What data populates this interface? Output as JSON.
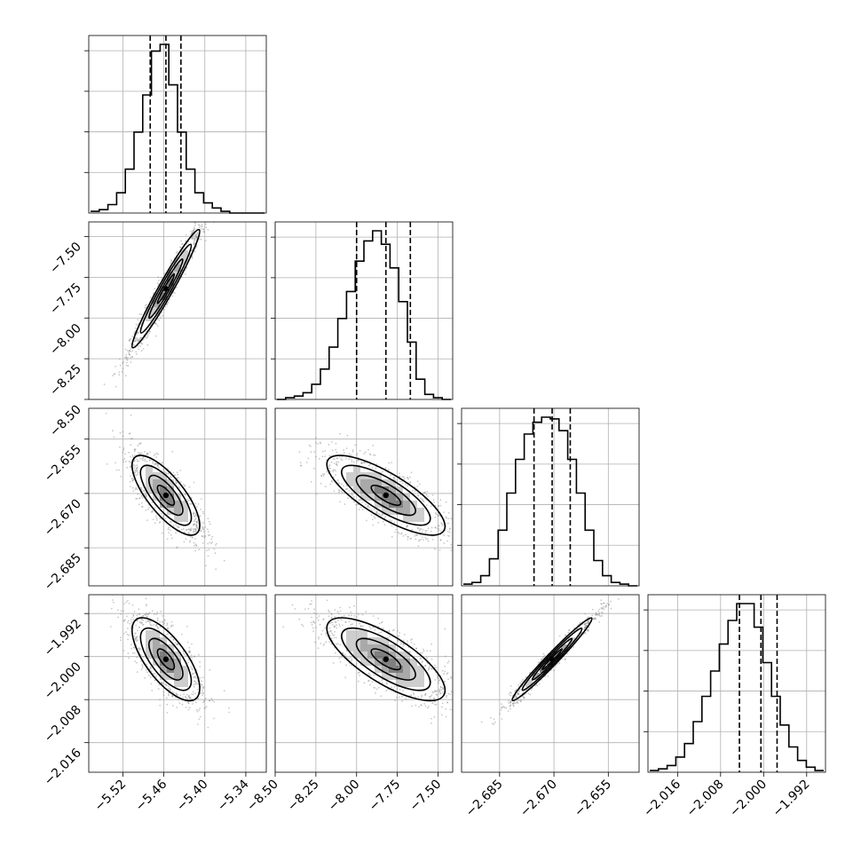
{
  "chart_data": {
    "type": "corner",
    "parameters": [
      {
        "id": "p0",
        "lim": [
          -5.57,
          -5.31
        ],
        "ticks": [
          -5.52,
          -5.46,
          -5.4,
          -5.34
        ],
        "tick_labels": [
          "−5.52",
          "−5.46",
          "−5.40",
          "−5.34"
        ],
        "quantiles": [
          -5.48,
          -5.457,
          -5.435
        ],
        "hist_counts": [
          1,
          2,
          5,
          12,
          26,
          48,
          70,
          96,
          100,
          76,
          48,
          26,
          12,
          6,
          3,
          1,
          0,
          0,
          0,
          0
        ]
      },
      {
        "id": "p1",
        "lim": [
          -8.5,
          -7.41
        ],
        "ticks": [
          -8.5,
          -8.25,
          -8.0,
          -7.75,
          -7.5
        ],
        "tick_labels": [
          "−8.50",
          "−8.25",
          "−8.00",
          "−7.75",
          "−7.50"
        ],
        "quantiles": [
          -8.0,
          -7.82,
          -7.67
        ],
        "hist_counts": [
          0,
          1,
          2,
          4,
          9,
          18,
          31,
          48,
          64,
          82,
          94,
          100,
          92,
          78,
          58,
          34,
          12,
          3,
          1,
          0
        ]
      },
      {
        "id": "p2",
        "lim": [
          -2.6955,
          -2.6465
        ],
        "ticks": [
          -2.685,
          -2.67,
          -2.655
        ],
        "tick_labels": [
          "−2.685",
          "−2.670",
          "−2.655"
        ],
        "quantiles": [
          -2.6755,
          -2.6705,
          -2.6655
        ],
        "hist_counts": [
          1,
          2,
          6,
          16,
          33,
          55,
          75,
          90,
          97,
          100,
          99,
          92,
          75,
          55,
          33,
          15,
          6,
          2,
          1,
          0
        ]
      },
      {
        "id": "p3",
        "lim": [
          -2.0215,
          -1.9885
        ],
        "ticks": [
          -2.016,
          -2.008,
          -2.0,
          -1.992
        ],
        "tick_labels": [
          "−2.016",
          "−2.008",
          "−2.000",
          "−1.992"
        ],
        "quantiles": [
          -2.0045,
          -2.0005,
          -1.9975
        ],
        "hist_counts": [
          1,
          2,
          4,
          9,
          17,
          30,
          45,
          60,
          76,
          90,
          100,
          100,
          86,
          65,
          45,
          28,
          15,
          7,
          3,
          1
        ]
      }
    ],
    "pairs": [
      {
        "x": 0,
        "y": 1,
        "corr": 0.97
      },
      {
        "x": 0,
        "y": 2,
        "corr": -0.75
      },
      {
        "x": 1,
        "y": 2,
        "corr": -0.78
      },
      {
        "x": 0,
        "y": 3,
        "corr": -0.7
      },
      {
        "x": 1,
        "y": 3,
        "corr": -0.75
      },
      {
        "x": 2,
        "y": 3,
        "corr": 0.98
      }
    ],
    "contour_levels_sigma": [
      0.5,
      1.0,
      1.5,
      2.0
    ],
    "show_grid": true,
    "colors": {
      "line": "#000000",
      "grid": "#b0b0b0",
      "points": "#888888",
      "density": "#000000"
    }
  }
}
